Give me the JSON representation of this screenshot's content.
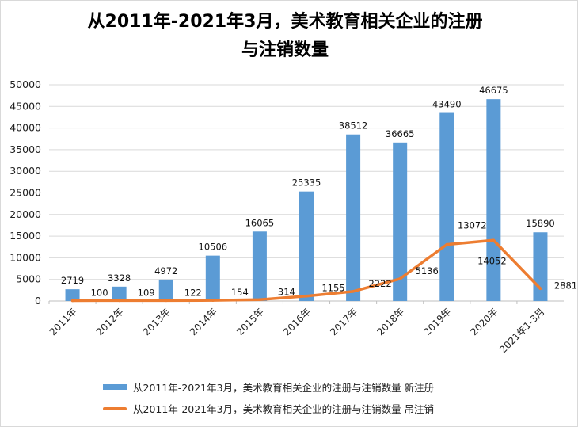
{
  "chart_data": {
    "type": "bar+line",
    "title_line1": "从2011年-2021年3月，美术教育相关企业的注册",
    "title_line2": "与注销数量",
    "categories": [
      "2011年",
      "2012年",
      "2013年",
      "2014年",
      "2015年",
      "2016年",
      "2017年",
      "2018年",
      "2019年",
      "2020年",
      "2021年1-3月"
    ],
    "series": [
      {
        "name": "从2011年-2021年3月，美术教育相关企业的注册与注销数量 新注册",
        "type": "bar",
        "values": [
          2719,
          3328,
          4972,
          10506,
          16065,
          25335,
          38512,
          36665,
          43490,
          46675,
          15890
        ]
      },
      {
        "name": "从2011年-2021年3月，美术教育相关企业的注册与注销数量 吊注销",
        "type": "line",
        "values": [
          100,
          109,
          122,
          154,
          314,
          1155,
          2222,
          5136,
          13072,
          14052,
          2881
        ]
      }
    ],
    "ylim": [
      0,
      50000
    ],
    "yticks": [
      "0",
      "5000",
      "10000",
      "15000",
      "20000",
      "25000",
      "30000",
      "35000",
      "40000",
      "45000",
      "50000"
    ],
    "grid": true,
    "legend_position": "bottom",
    "colors": {
      "bar": "#5b9bd5",
      "line": "#ed7d31",
      "grid": "#d9d9d9",
      "axis": "#bfbfbf"
    }
  }
}
